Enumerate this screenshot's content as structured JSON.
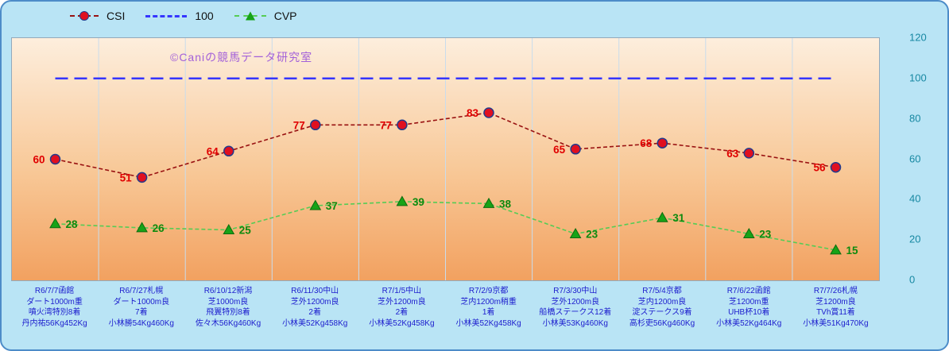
{
  "watermark": "©Caniの競馬データ研究室",
  "frame": {
    "background": "#b9e4f5",
    "border_color": "#4d8cc8",
    "plot_gradient_top": "#fdeedd",
    "plot_gradient_mid": "#f8c897",
    "plot_gradient_bottom": "#f2a160",
    "grid_color": "#c9dcec",
    "x_label_color": "#1c1ccd",
    "y_label_color": "#1788a2",
    "watermark_color": "#a361d9"
  },
  "chart_data": {
    "type": "line",
    "title": "",
    "ylim": [
      0,
      120
    ],
    "yticks": [
      0,
      20,
      40,
      60,
      80,
      100,
      120
    ],
    "grid": "vertical",
    "legend_position": "top",
    "categories": [
      [
        "R6/7/7函館",
        "ダート1000m重",
        "噴火湾特別8着",
        "丹内祐56Kg452Kg"
      ],
      [
        "R6/7/27札幌",
        "ダート1000m良",
        "7着",
        "小林勝54Kg460Kg"
      ],
      [
        "R6/10/12新潟",
        "芝1000m良",
        "飛翼特別8着",
        "佐々木56Kg460Kg"
      ],
      [
        "R6/11/30中山",
        "芝外1200m良",
        "2着",
        "小林美52Kg458Kg"
      ],
      [
        "R7/1/5中山",
        "芝外1200m良",
        "2着",
        "小林美52Kg458Kg"
      ],
      [
        "R7/2/9京都",
        "芝内1200m稍重",
        "1着",
        "小林美52Kg458Kg"
      ],
      [
        "R7/3/30中山",
        "芝外1200m良",
        "船橋ステークス12着",
        "小林美53Kg460Kg"
      ],
      [
        "R7/5/4京都",
        "芝内1200m良",
        "淀ステークス9着",
        "高杉吏56Kg460Kg"
      ],
      [
        "R7/6/22函館",
        "芝1200m重",
        "UHB杯10着",
        "小林美52Kg464Kg"
      ],
      [
        "R7/7/26札幌",
        "芝1200m良",
        "TVh賞11着",
        "小林美51Kg470Kg"
      ]
    ],
    "series": [
      {
        "name": "CSI",
        "values": [
          60,
          51,
          64,
          77,
          77,
          83,
          65,
          68,
          63,
          56
        ],
        "line_color": "#991111",
        "line_width": 1.6,
        "dash": "5 3",
        "marker": "circle",
        "marker_fill": "#e01020",
        "marker_stroke": "#223a8c",
        "label_color": "#e00000",
        "label_side": "left"
      },
      {
        "name": "100",
        "values": [
          100,
          100,
          100,
          100,
          100,
          100,
          100,
          100,
          100,
          100
        ],
        "line_color": "#3535ff",
        "line_width": 2.5,
        "dash": "16 8",
        "marker": "none"
      },
      {
        "name": "CVP",
        "values": [
          28,
          26,
          25,
          37,
          39,
          38,
          23,
          31,
          23,
          15
        ],
        "line_color": "#55cc55",
        "line_width": 1.6,
        "dash": "5 3",
        "marker": "triangle",
        "marker_fill": "#17a317",
        "marker_stroke": "#0e6b0e",
        "label_color": "#0e8a0e",
        "label_side": "right"
      }
    ]
  }
}
